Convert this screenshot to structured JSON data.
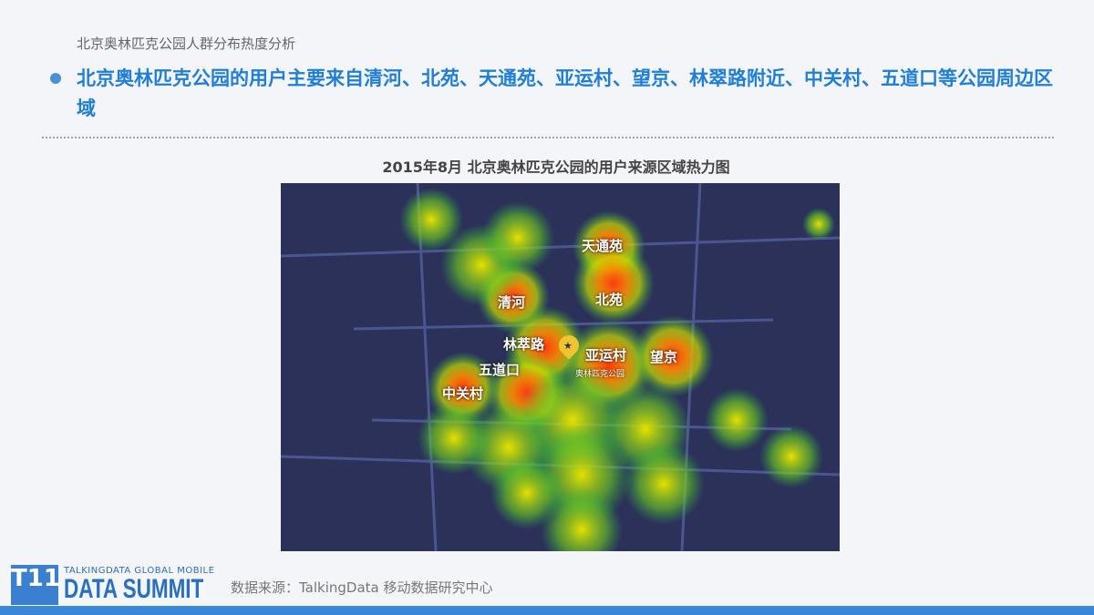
{
  "header": {
    "subtitle": "北京奥林匹克公园人群分布热度分析",
    "headline": "北京奥林匹克公园的用户主要来自清河、北苑、天通苑、亚运村、望京、林翠路附近、中关村、五道口等公园周边区域"
  },
  "chart": {
    "title": "2015年8月  北京奥林匹克公园的用户来源区域热力图",
    "labels": {
      "tiantongyuan": "天通苑",
      "qinghe": "清河",
      "beiyuan": "北苑",
      "lincuilu": "林萃路",
      "yayuncun": "亚运村",
      "wangjing": "望京",
      "wudaokou": "五道口",
      "zhongguancun": "中关村",
      "park": "奥林匹克公园"
    },
    "pin_icon": "star-map-pin-icon",
    "map_bg": "#2c3159",
    "accent": "#f0c330"
  },
  "footer": {
    "logo_icon": "T11",
    "logo_line1": "TALKINGDATA GLOBAL MOBILE",
    "logo_line2": "DATA SUMMIT",
    "source": "数据来源：TalkingData 移动数据研究中心",
    "bar_color": "#3a87d9"
  }
}
